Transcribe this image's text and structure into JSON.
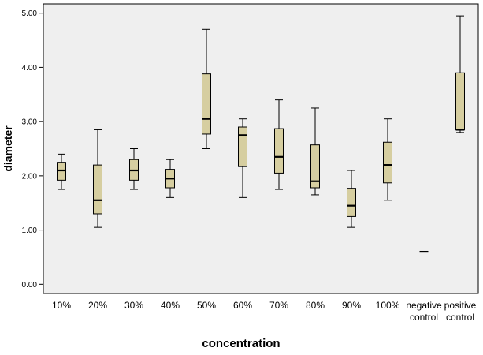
{
  "chart_data": {
    "type": "box",
    "xlabel": "concentration",
    "ylabel": "diameter",
    "ylim": [
      -0.17,
      5.17
    ],
    "y_ticks": [
      "0.00",
      "1.00",
      "2.00",
      "3.00",
      "4.00",
      "5.00"
    ],
    "grid": false,
    "categories": [
      {
        "label": [
          "10%"
        ],
        "min": 1.75,
        "q1": 1.92,
        "median": 2.1,
        "q3": 2.25,
        "max": 2.4
      },
      {
        "label": [
          "20%"
        ],
        "min": 1.05,
        "q1": 1.3,
        "median": 1.55,
        "q3": 2.2,
        "max": 2.85
      },
      {
        "label": [
          "30%"
        ],
        "min": 1.75,
        "q1": 1.92,
        "median": 2.1,
        "q3": 2.3,
        "max": 2.5
      },
      {
        "label": [
          "40%"
        ],
        "min": 1.6,
        "q1": 1.78,
        "median": 1.95,
        "q3": 2.12,
        "max": 2.3
      },
      {
        "label": [
          "50%"
        ],
        "min": 2.5,
        "q1": 2.77,
        "median": 3.05,
        "q3": 3.88,
        "max": 4.7
      },
      {
        "label": [
          "60%"
        ],
        "min": 1.6,
        "q1": 2.17,
        "median": 2.75,
        "q3": 2.9,
        "max": 3.05
      },
      {
        "label": [
          "70%"
        ],
        "min": 1.75,
        "q1": 2.05,
        "median": 2.35,
        "q3": 2.87,
        "max": 3.4
      },
      {
        "label": [
          "80%"
        ],
        "min": 1.65,
        "q1": 1.78,
        "median": 1.9,
        "q3": 2.57,
        "max": 3.25
      },
      {
        "label": [
          "90%"
        ],
        "min": 1.05,
        "q1": 1.25,
        "median": 1.45,
        "q3": 1.77,
        "max": 2.1
      },
      {
        "label": [
          "100%"
        ],
        "min": 1.55,
        "q1": 1.87,
        "median": 2.2,
        "q3": 2.62,
        "max": 3.05
      },
      {
        "label": [
          "negative",
          "control"
        ],
        "min": 0.6,
        "q1": 0.6,
        "median": 0.6,
        "q3": 0.6,
        "max": 0.6
      },
      {
        "label": [
          "positive",
          "control"
        ],
        "min": 2.8,
        "q1": 2.85,
        "median": 2.85,
        "q3": 3.9,
        "max": 4.95
      }
    ],
    "colors": {
      "box_fill": "#d6cea0",
      "plot_background": "#efefef",
      "line": "#000000"
    }
  }
}
